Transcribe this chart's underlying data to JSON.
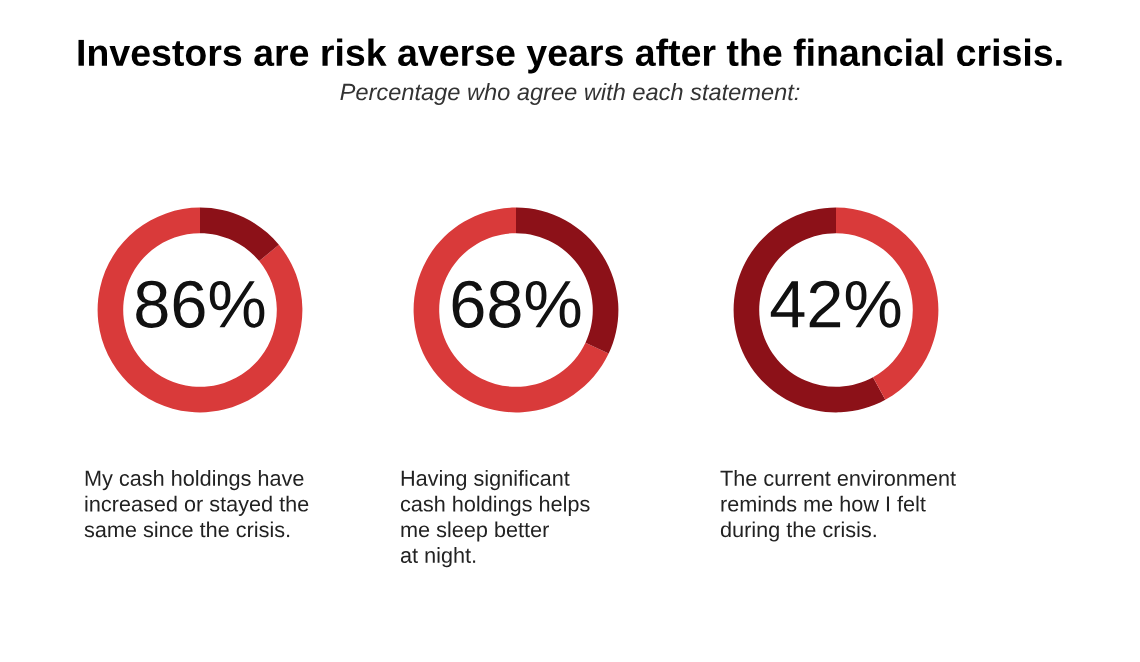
{
  "chart_data": [
    {
      "type": "donut",
      "categories": [
        null,
        null
      ],
      "values": [
        86,
        14
      ],
      "colors": [
        "#d93a3a",
        "#8c1118"
      ],
      "value_labels": [
        "86%",
        null
      ],
      "annotations": [
        "My cash holdings have\nincreased or stayed the\nsame since the crisis."
      ]
    },
    {
      "type": "donut",
      "title": "Investors are risk averse years after the financial crisis.",
      "subtitle": "Percentage who agree with each statement:",
      "categories": [
        null,
        null
      ],
      "values": [
        68,
        32
      ],
      "colors": [
        "#d93a3a",
        "#8c1118"
      ],
      "value_labels": [
        "68%",
        null
      ],
      "annotations": [
        "Having significant\ncash holdings helps\nme sleep better\nat night."
      ]
    },
    {
      "type": "donut",
      "categories": [
        null,
        null
      ],
      "values": [
        58,
        42
      ],
      "colors": [
        "#8c1118",
        "#d93a3a"
      ],
      "value_labels": [
        null,
        "42%"
      ],
      "annotations": [
        "The current environment\nreminds me how I felt\nduring the crisis."
      ]
    }
  ]
}
